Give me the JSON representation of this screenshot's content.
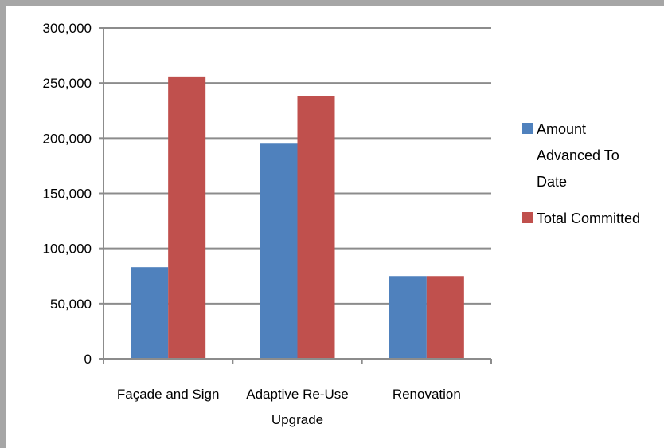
{
  "chart_data": {
    "type": "bar",
    "categories": [
      "Façade and Sign",
      "Adaptive Re-Use Upgrade",
      "Renovation"
    ],
    "category_lines": [
      [
        "Façade and Sign"
      ],
      [
        "Adaptive Re-Use",
        "Upgrade"
      ],
      [
        "Renovation"
      ]
    ],
    "series": [
      {
        "name": "Amount Advanced To Date",
        "legend_lines": [
          "Amount",
          "Advanced To",
          "Date"
        ],
        "color": "#4f81bd",
        "values": [
          83000,
          195000,
          75000
        ]
      },
      {
        "name": "Total Committed",
        "legend_lines": [
          "Total Committed"
        ],
        "color": "#c0504d",
        "values": [
          256000,
          238000,
          75000
        ]
      }
    ],
    "y_ticks": [
      "0",
      "50,000",
      "100,000",
      "150,000",
      "200,000",
      "250,000",
      "300,000"
    ],
    "ylim": [
      0,
      300000
    ],
    "grid": true,
    "legend_position": "right",
    "gridline_color": "#8c8c8c"
  }
}
